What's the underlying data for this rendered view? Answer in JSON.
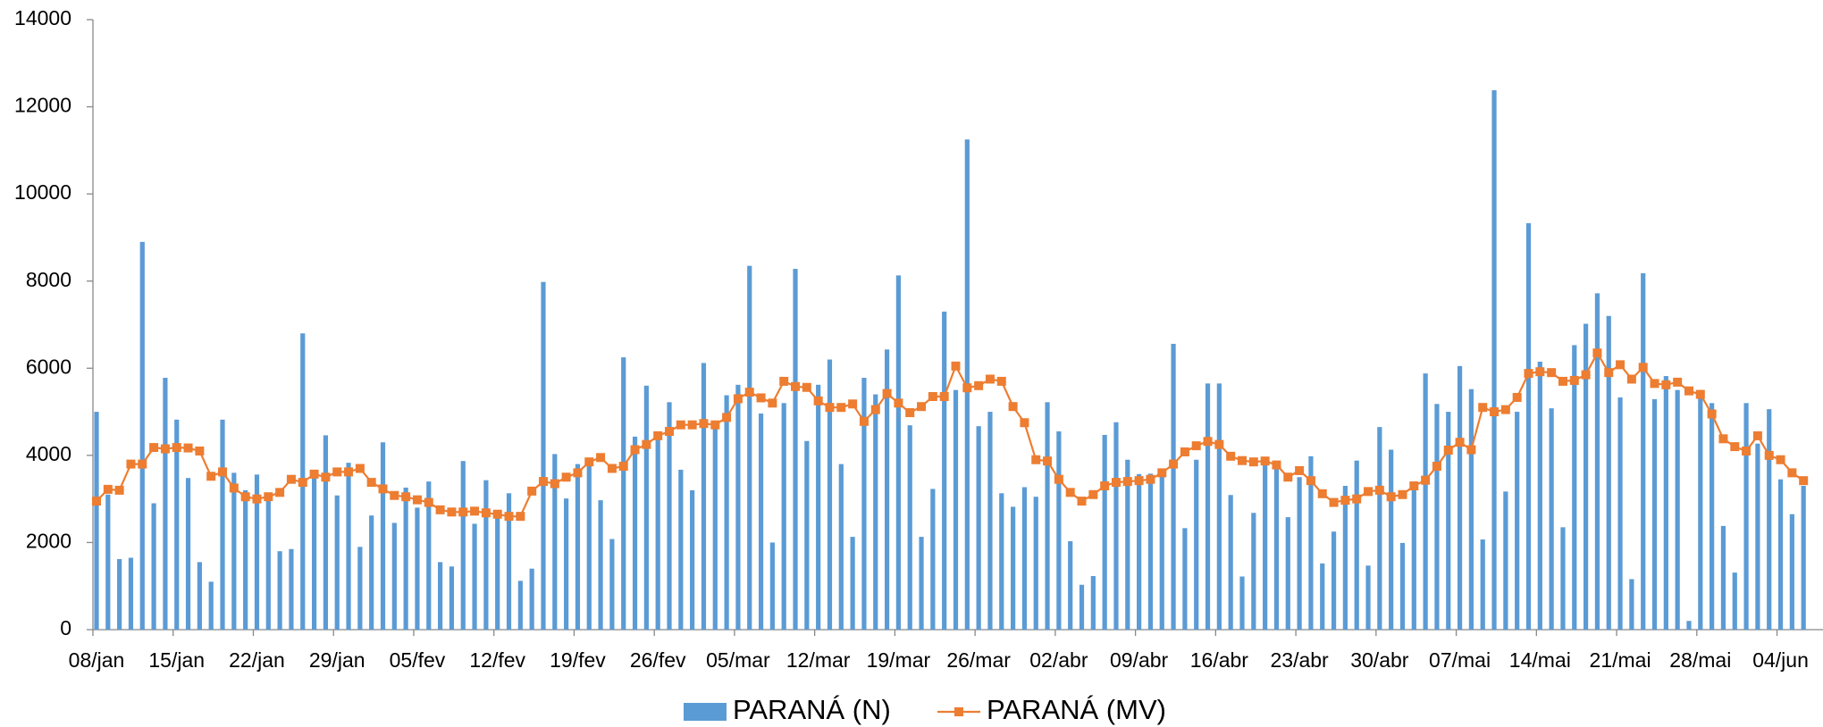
{
  "chart_data": {
    "type": "bar",
    "categories": [
      "08/jan",
      null,
      null,
      null,
      null,
      null,
      null,
      "15/jan",
      null,
      null,
      null,
      null,
      null,
      null,
      "22/jan",
      null,
      null,
      null,
      null,
      null,
      null,
      "29/jan",
      null,
      null,
      null,
      null,
      null,
      null,
      "05/fev",
      null,
      null,
      null,
      null,
      null,
      null,
      "12/fev",
      null,
      null,
      null,
      null,
      null,
      null,
      "19/fev",
      null,
      null,
      null,
      null,
      null,
      null,
      "26/fev",
      null,
      null,
      null,
      null,
      null,
      null,
      "05/mar",
      null,
      null,
      null,
      null,
      null,
      null,
      "12/mar",
      null,
      null,
      null,
      null,
      null,
      null,
      "19/mar",
      null,
      null,
      null,
      null,
      null,
      null,
      "26/mar",
      null,
      null,
      null,
      null,
      null,
      null,
      "02/abr",
      null,
      null,
      null,
      null,
      null,
      null,
      "09/abr",
      null,
      null,
      null,
      null,
      null,
      null,
      "16/abr",
      null,
      null,
      null,
      null,
      null,
      null,
      "23/abr",
      null,
      null,
      null,
      null,
      null,
      null,
      "30/abr",
      null,
      null,
      null,
      null,
      null,
      null,
      "07/mai",
      null,
      null,
      null,
      null,
      null,
      null,
      "14/mai",
      null,
      null,
      null,
      null,
      null,
      null,
      "21/mai",
      null,
      null,
      null,
      null,
      null,
      null,
      "28/mai",
      null,
      null,
      null,
      null,
      null,
      null,
      "04/jun",
      null,
      null
    ],
    "series": [
      {
        "name": "PARANÁ (N)",
        "type": "bar",
        "color": "#5b9bd5",
        "values": [
          5000,
          3100,
          1620,
          1650,
          8900,
          2900,
          5780,
          4820,
          3480,
          1550,
          1100,
          4820,
          3600,
          3200,
          3560,
          3100,
          1800,
          1850,
          6800,
          3500,
          4460,
          3080,
          3830,
          1900,
          2620,
          4300,
          2450,
          3260,
          2800,
          3400,
          1550,
          1450,
          3870,
          2430,
          3430,
          2700,
          3130,
          1120,
          1400,
          7980,
          4030,
          3010,
          3800,
          3850,
          2970,
          2080,
          6250,
          4430,
          5600,
          4500,
          5220,
          3670,
          3200,
          6120,
          4700,
          5380,
          5620,
          8350,
          4960,
          2000,
          5200,
          8280,
          4330,
          5620,
          6200,
          3800,
          2130,
          5780,
          5400,
          6430,
          8130,
          4690,
          2130,
          3230,
          7300,
          5500,
          11250,
          4670,
          5000,
          3130,
          2820,
          3270,
          3050,
          5220,
          4550,
          2030,
          1030,
          1230,
          4470,
          4760,
          3900,
          3570,
          3580,
          3620,
          6560,
          2330,
          3900,
          5650,
          5650,
          3090,
          1220,
          2680,
          3800,
          3850,
          2580,
          3500,
          3980,
          1520,
          2250,
          3300,
          3880,
          1470,
          4650,
          4130,
          1990,
          3350,
          5880,
          5180,
          5000,
          6050,
          5520,
          2070,
          12380,
          3170,
          5000,
          9330,
          6150,
          5080,
          2350,
          6530,
          7020,
          7720,
          7200,
          5330,
          1160,
          8180,
          5290,
          5820,
          5500,
          200,
          5380,
          5200,
          2380,
          1310,
          5200,
          4270,
          5060,
          3450,
          2650,
          3300
        ]
      },
      {
        "name": "PARANÁ (MV)",
        "type": "line",
        "color": "#ed7d31",
        "values": [
          2950,
          3220,
          3200,
          3800,
          3800,
          4180,
          4150,
          4180,
          4170,
          4100,
          3520,
          3620,
          3250,
          3050,
          3000,
          3050,
          3150,
          3450,
          3380,
          3570,
          3500,
          3620,
          3620,
          3700,
          3380,
          3230,
          3080,
          3050,
          2980,
          2920,
          2750,
          2700,
          2700,
          2720,
          2680,
          2650,
          2600,
          2600,
          3180,
          3400,
          3350,
          3500,
          3600,
          3850,
          3950,
          3700,
          3750,
          4130,
          4250,
          4450,
          4550,
          4700,
          4700,
          4730,
          4700,
          4870,
          5300,
          5450,
          5320,
          5200,
          5700,
          5580,
          5560,
          5250,
          5100,
          5100,
          5180,
          4780,
          5050,
          5420,
          5200,
          4980,
          5120,
          5350,
          5350,
          6050,
          5550,
          5600,
          5750,
          5700,
          5120,
          4750,
          3900,
          3870,
          3450,
          3150,
          2950,
          3100,
          3300,
          3380,
          3400,
          3420,
          3450,
          3600,
          3800,
          4080,
          4220,
          4320,
          4250,
          3980,
          3880,
          3850,
          3870,
          3780,
          3500,
          3650,
          3420,
          3120,
          2920,
          2970,
          3000,
          3170,
          3200,
          3050,
          3100,
          3300,
          3430,
          3750,
          4120,
          4300,
          4130,
          5100,
          5000,
          5050,
          5330,
          5880,
          5920,
          5900,
          5700,
          5720,
          5850,
          6350,
          5900,
          6080,
          5750,
          6020,
          5650,
          5620,
          5680,
          5480,
          5400,
          4950,
          4380,
          4200,
          4100,
          4450,
          4000,
          3900,
          3600,
          3420
        ]
      }
    ],
    "ylim": [
      0,
      14000
    ],
    "yticks": [
      0,
      2000,
      4000,
      6000,
      8000,
      10000,
      12000,
      14000
    ],
    "grid": false,
    "legend": "bottom"
  }
}
